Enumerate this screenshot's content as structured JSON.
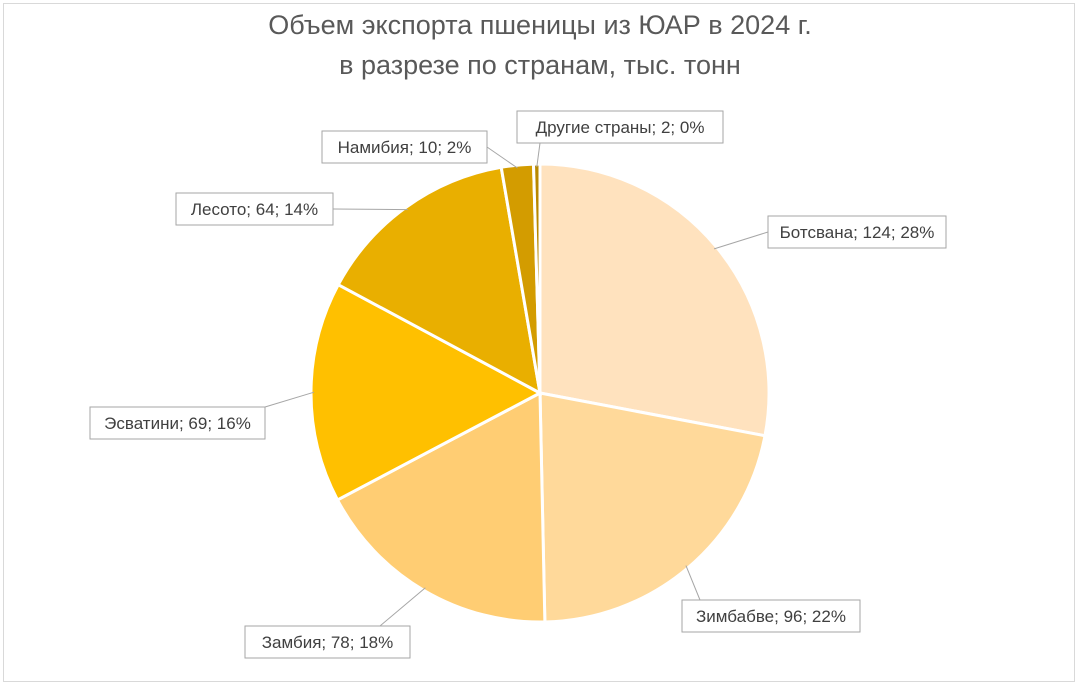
{
  "chart_data": {
    "type": "pie",
    "title_lines": [
      "Объем экспорта пшеницы из ЮАР в 2024 г.",
      "в разрезе по странам, тыс. тонн"
    ],
    "slices": [
      {
        "name": "Ботсвана",
        "value": 124,
        "percent": "28%",
        "label": "Ботсвана; 124; 28%",
        "color": "#FFE2BE"
      },
      {
        "name": "Зимбабве",
        "value": 96,
        "percent": "22%",
        "label": "Зимбабве; 96; 22%",
        "color": "#FFD99A"
      },
      {
        "name": "Замбия",
        "value": 78,
        "percent": "18%",
        "label": "Замбия; 78; 18%",
        "color": "#FFCD73"
      },
      {
        "name": "Эсватини",
        "value": 69,
        "percent": "16%",
        "label": "Эсватини; 69; 16%",
        "color": "#FFC000"
      },
      {
        "name": "Лесото",
        "value": 64,
        "percent": "14%",
        "label": "Лесото; 64; 14%",
        "color": "#E9AF00"
      },
      {
        "name": "Намибия",
        "value": 10,
        "percent": "2%",
        "label": "Намибия; 10; 2%",
        "color": "#D39C00"
      },
      {
        "name": "Другие страны",
        "value": 2,
        "percent": "0%",
        "label": "Другие страны; 2; 0%",
        "color": "#B88800"
      }
    ]
  }
}
